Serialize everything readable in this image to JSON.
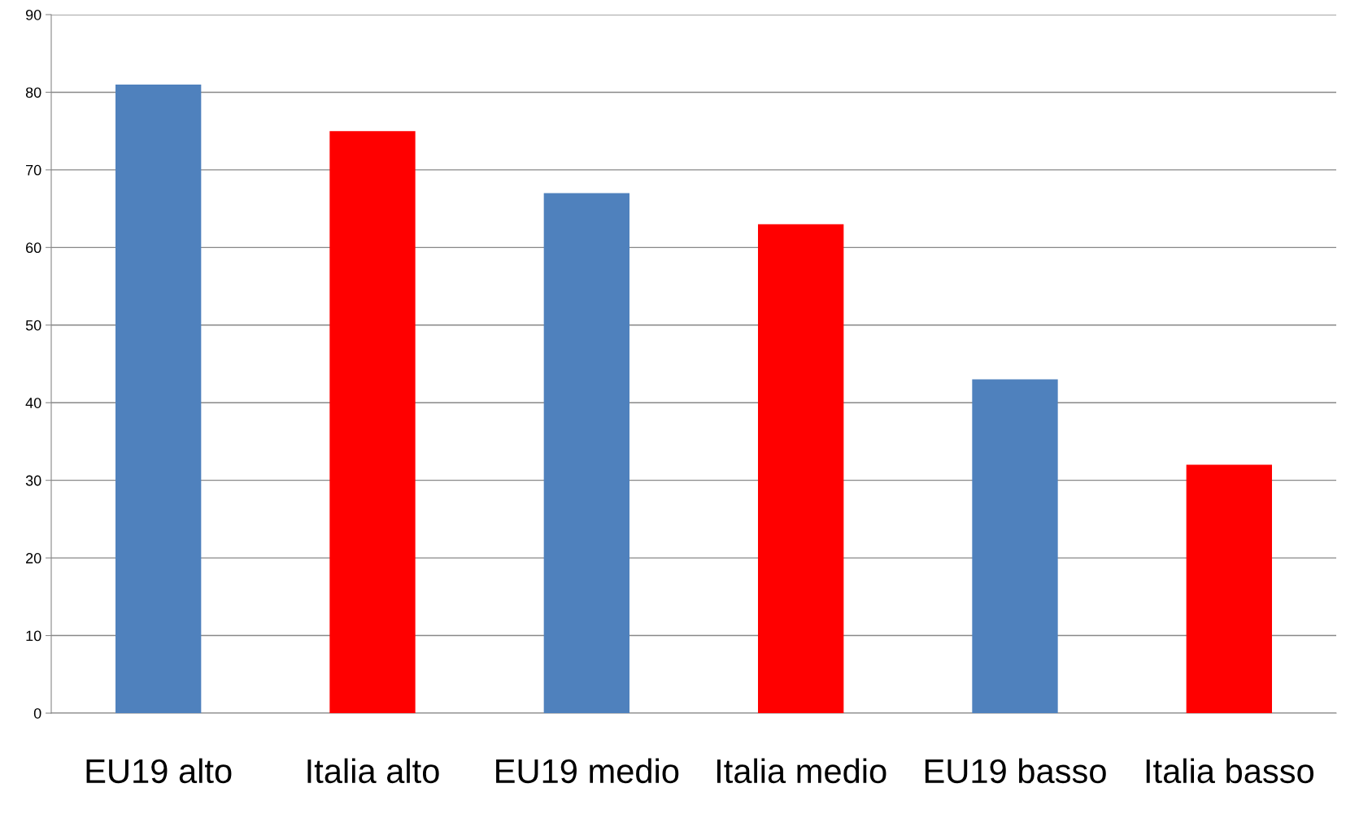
{
  "chart_data": {
    "type": "bar",
    "categories": [
      "EU19 alto",
      "Italia alto",
      "EU19 medio",
      "Italia medio",
      "EU19 basso",
      "Italia basso"
    ],
    "values": [
      81,
      75,
      67,
      63,
      43,
      32
    ],
    "colors": [
      "#4f81bd",
      "#ff0000",
      "#4f81bd",
      "#ff0000",
      "#4f81bd",
      "#ff0000"
    ],
    "ylim": [
      0,
      90
    ],
    "yticks": [
      0,
      10,
      20,
      30,
      40,
      50,
      60,
      70,
      80,
      90
    ],
    "grid": "y",
    "legend": false
  }
}
